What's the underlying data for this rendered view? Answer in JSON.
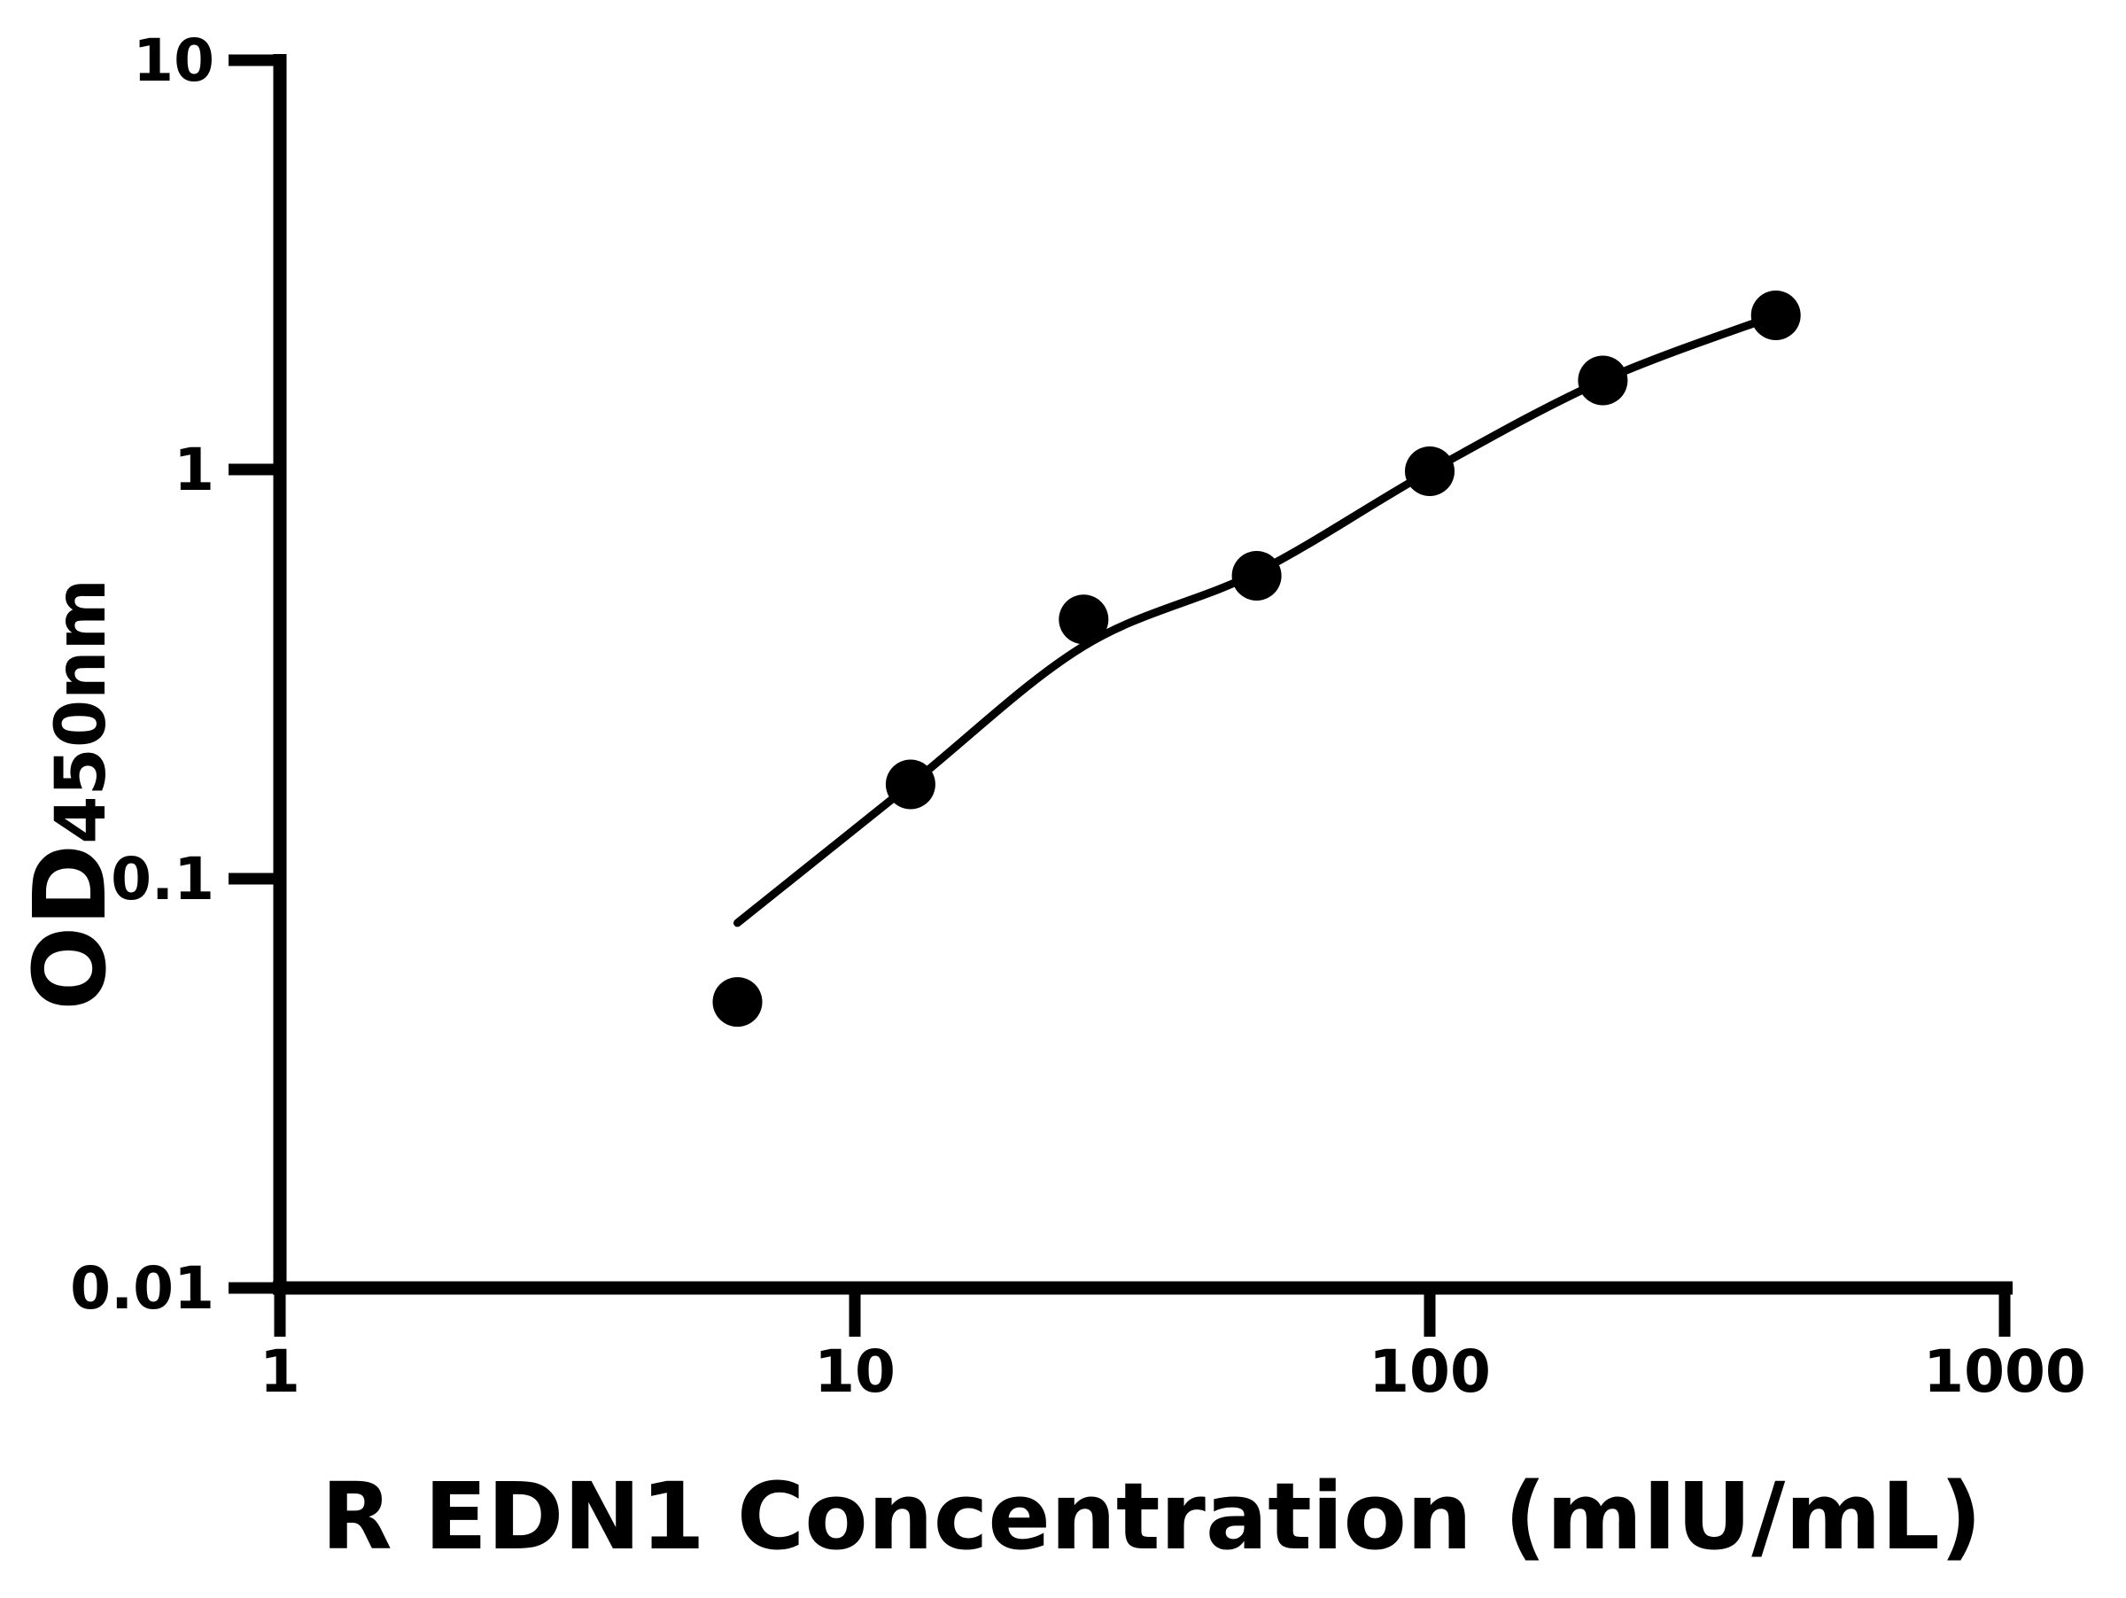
{
  "chart_data": {
    "type": "scatter",
    "title": "",
    "xlabel": "R EDN1 Concentration (mIU/mL)",
    "ylabel": "OD",
    "ylabel_subscript": "450nm",
    "x_scale": "log",
    "y_scale": "log",
    "xlim": [
      1,
      1000
    ],
    "ylim": [
      0.01,
      10
    ],
    "x_ticks": [
      1,
      10,
      100,
      1000
    ],
    "x_tick_labels": [
      "1",
      "10",
      "100",
      "1000"
    ],
    "y_ticks": [
      10,
      1,
      0.1,
      0.01
    ],
    "y_tick_labels": [
      "10",
      "1",
      "0.1",
      "0.01"
    ],
    "grid": false,
    "legend": null,
    "axis_color": "#000000",
    "marker_color": "#000000",
    "line_color": "#000000",
    "background": "#ffffff",
    "series": [
      {
        "name": "standard-points",
        "type": "scatter",
        "x": [
          6.25,
          12.5,
          25,
          50,
          100,
          200,
          400
        ],
        "y": [
          0.05,
          0.17,
          0.43,
          0.55,
          0.99,
          1.65,
          2.38
        ]
      },
      {
        "name": "fit-curve",
        "type": "line",
        "x": [
          6.25,
          12.5,
          25,
          50,
          100,
          200,
          400
        ],
        "y": [
          0.078,
          0.17,
          0.37,
          0.56,
          0.99,
          1.65,
          2.38
        ]
      }
    ]
  }
}
